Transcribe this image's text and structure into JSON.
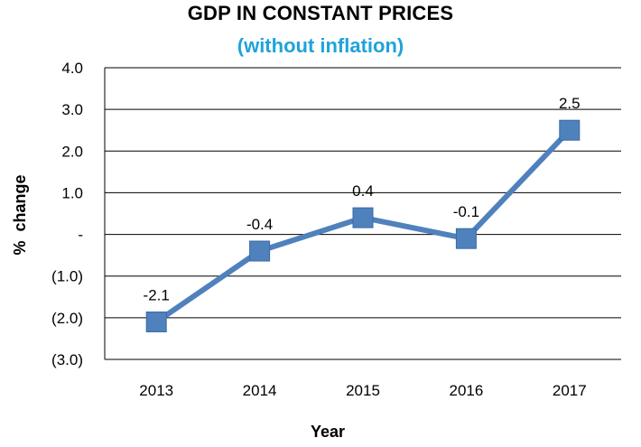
{
  "chart_data": {
    "type": "line",
    "title": "GDP IN CONSTANT PRICES",
    "subtitle": "(without inflation)",
    "xlabel": "Year",
    "ylabel": "%  change",
    "categories": [
      "2013",
      "2014",
      "2015",
      "2016",
      "2017"
    ],
    "series": [
      {
        "values": [
          -2.1,
          -0.4,
          0.4,
          -0.1,
          2.5
        ]
      }
    ],
    "data_labels": [
      "-2.1",
      "-0.4",
      "0.4",
      "-0.1",
      "2.5"
    ],
    "ylim": [
      -3.0,
      4.0
    ],
    "y_ticks": [
      4.0,
      3.0,
      2.0,
      1.0,
      0,
      -1.0,
      -2.0,
      -3.0
    ],
    "y_tick_labels": [
      "4.0",
      "3.0",
      "2.0",
      "1.0",
      "-",
      "(1.0)",
      "(2.0)",
      "(3.0)"
    ],
    "grid": true,
    "legend": "none",
    "colors": {
      "series": "#4f81bd",
      "subtitle": "#1fa3d8",
      "grid": "#000000"
    }
  }
}
